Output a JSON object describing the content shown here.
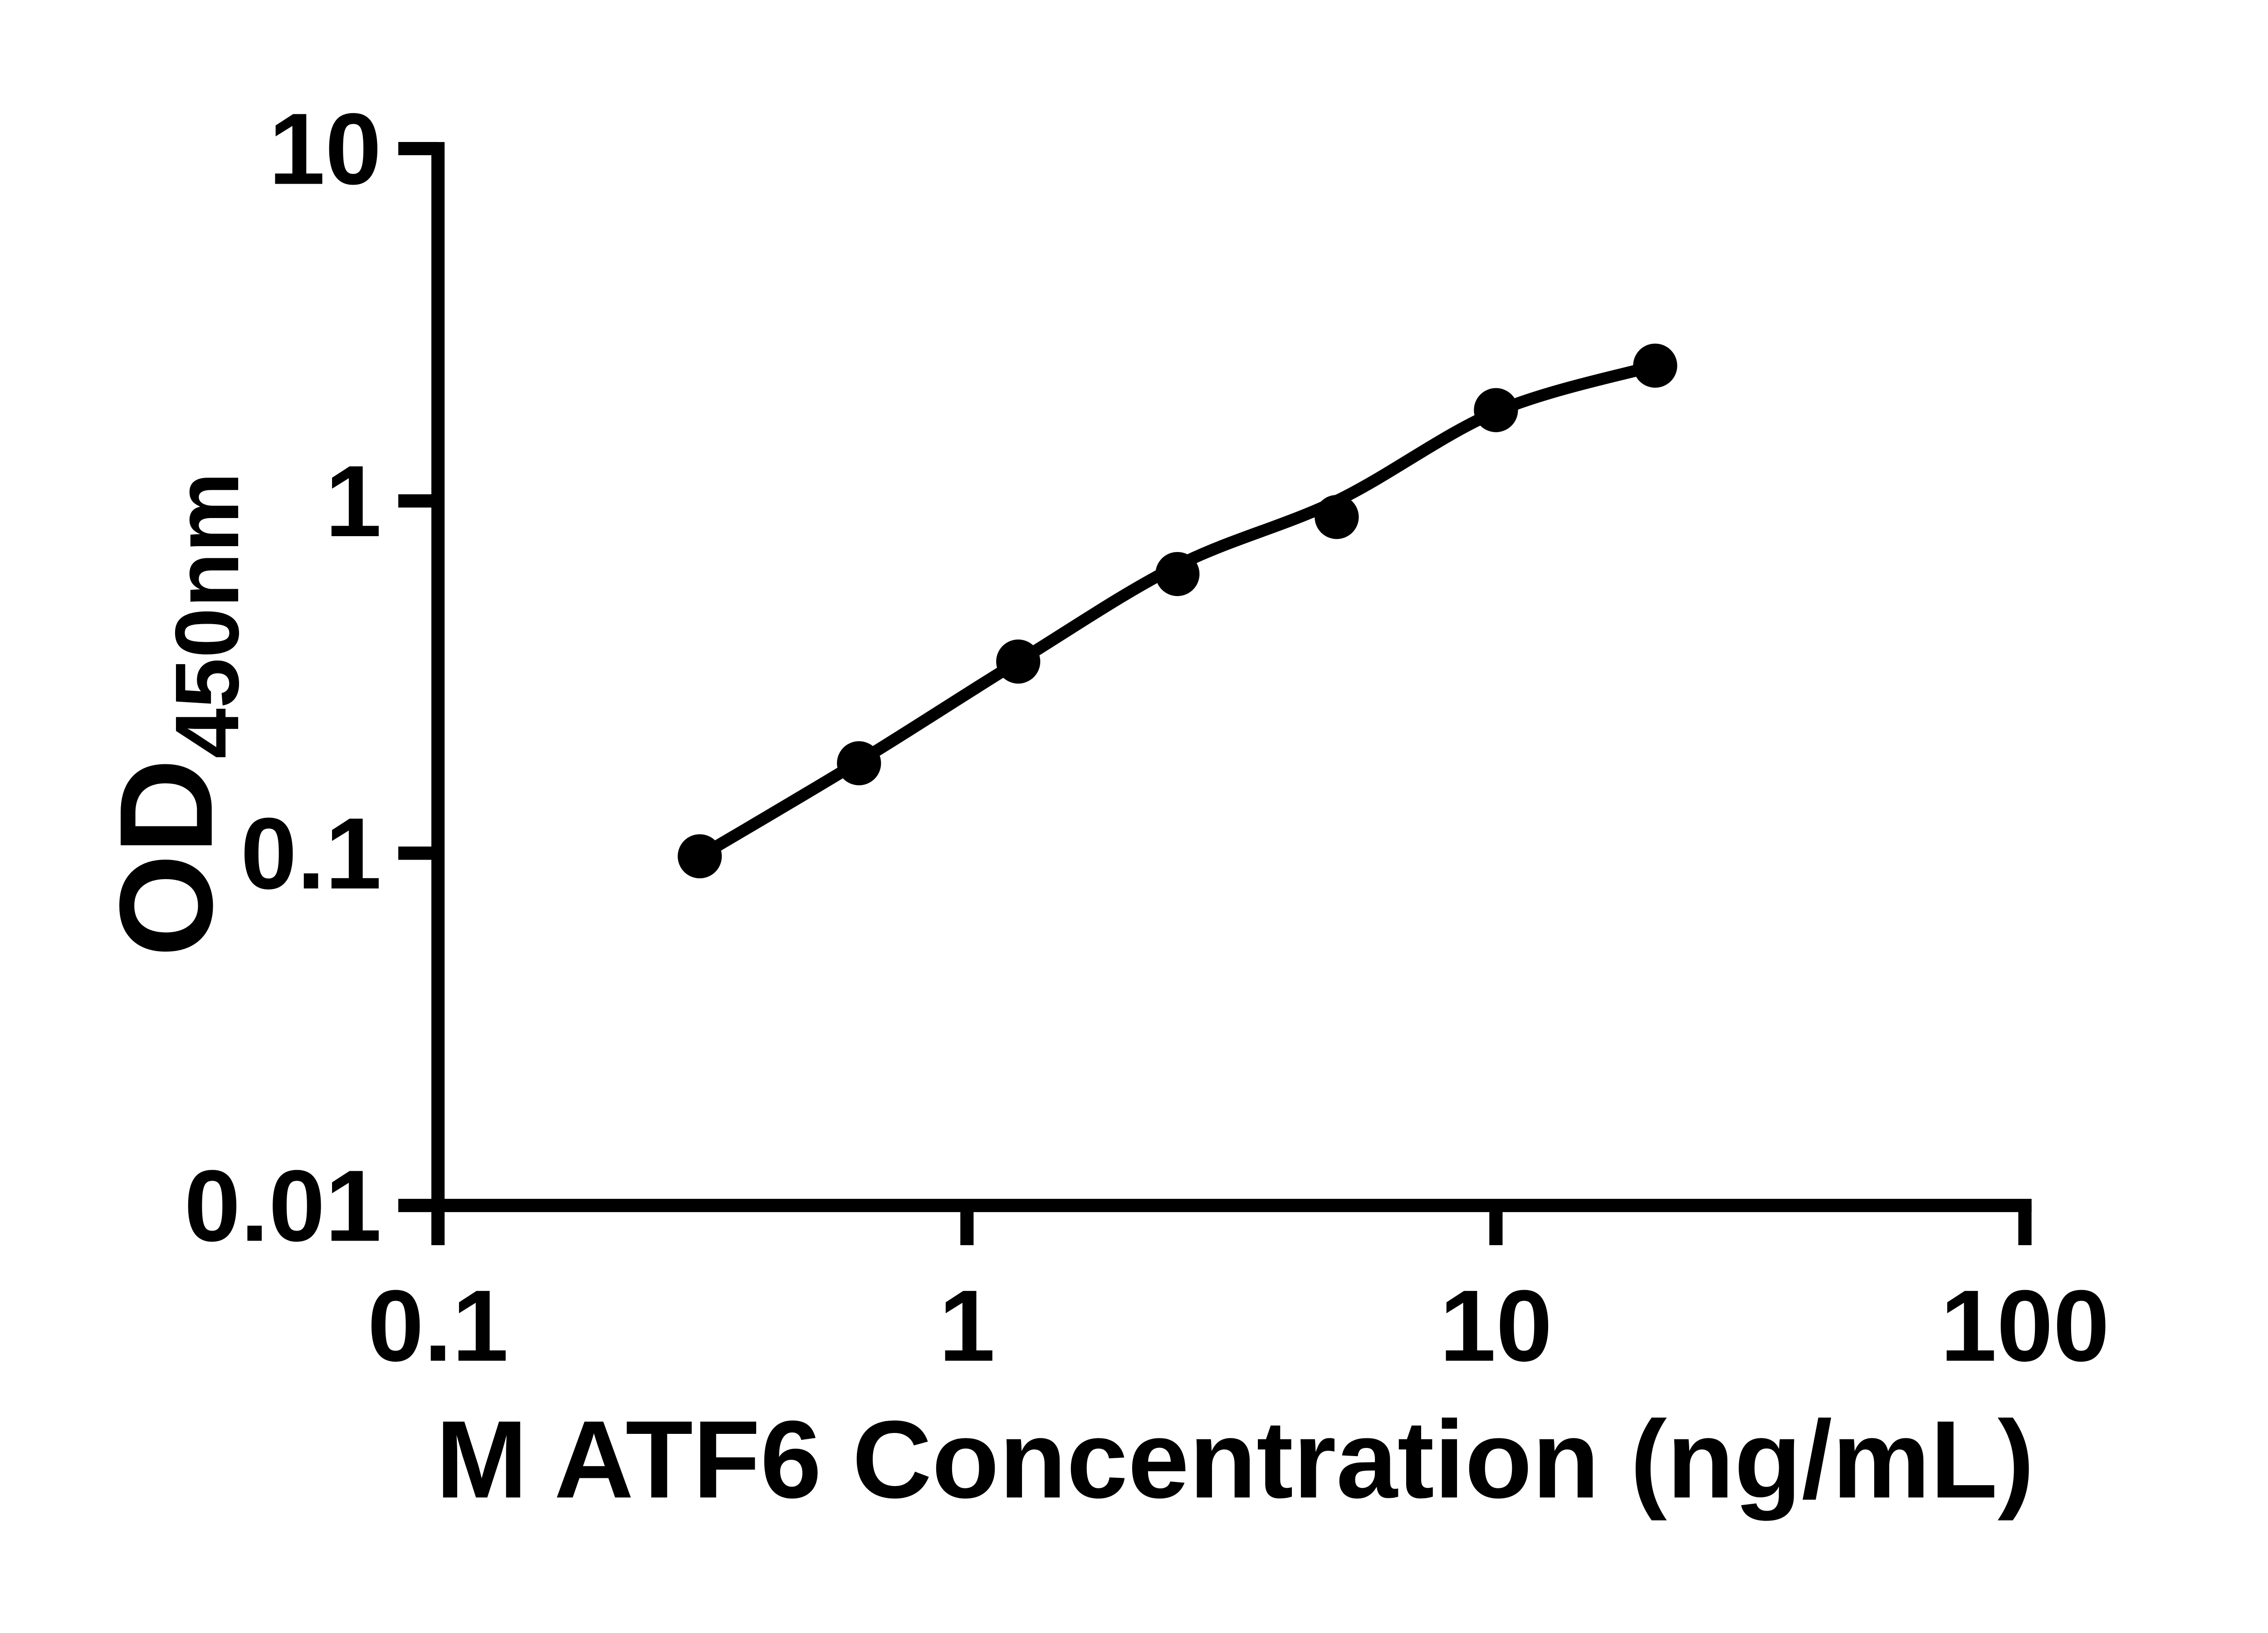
{
  "colors": {
    "foreground": "#000000",
    "background": "#ffffff"
  },
  "chart_data": {
    "type": "scatter",
    "title": "",
    "xlabel": "M ATF6 Concentration (ng/mL)",
    "ylabel": "OD450nm",
    "ylabel_main": "OD",
    "ylabel_sub": "450nm",
    "x_scale": "log",
    "y_scale": "log",
    "xlim": [
      0.1,
      100
    ],
    "ylim": [
      0.01,
      10
    ],
    "grid": false,
    "legend_position": "none",
    "x_ticks": [
      0.1,
      1,
      10,
      100
    ],
    "x_tick_labels": [
      "0.1",
      "1",
      "10",
      "100"
    ],
    "y_ticks": [
      10,
      1,
      0.1,
      0.01
    ],
    "y_tick_labels": [
      "10",
      "1",
      "0.1",
      "0.01"
    ],
    "marker": "filled-circle",
    "marker_color": "#000000",
    "points": [
      {
        "x": 0.3125,
        "y": 0.098
      },
      {
        "x": 0.625,
        "y": 0.18
      },
      {
        "x": 1.25,
        "y": 0.35
      },
      {
        "x": 2.5,
        "y": 0.62
      },
      {
        "x": 5,
        "y": 0.9
      },
      {
        "x": 10,
        "y": 1.81
      },
      {
        "x": 20,
        "y": 2.42
      }
    ],
    "fit_curve_points": [
      {
        "x": 0.3125,
        "y": 0.098
      },
      {
        "x": 0.625,
        "y": 0.182
      },
      {
        "x": 1.25,
        "y": 0.35
      },
      {
        "x": 2.5,
        "y": 0.655
      },
      {
        "x": 5,
        "y": 1.0
      },
      {
        "x": 10,
        "y": 1.79
      },
      {
        "x": 20,
        "y": 2.42
      }
    ]
  }
}
